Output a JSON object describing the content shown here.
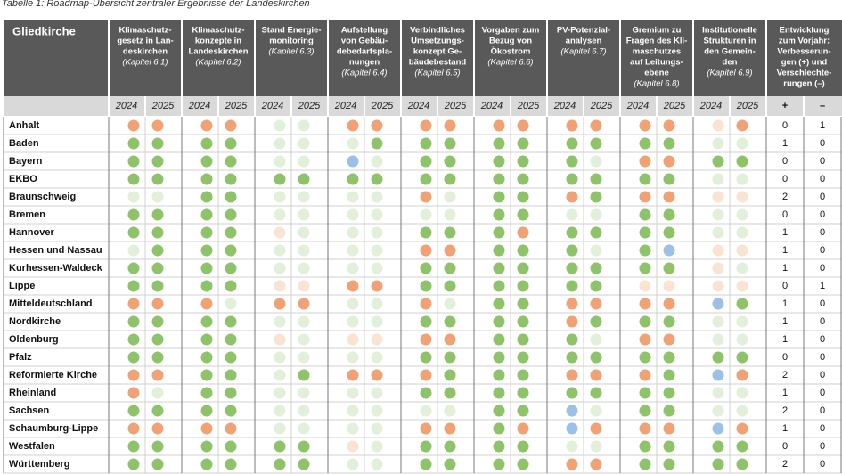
{
  "caption": "Tabelle 1: Roadmap-Übersicht zentraler Ergebnisse der Landeskirchen",
  "table": {
    "first_header": "Gliedkirche",
    "columns": [
      {
        "lines": [
          "Klimaschutz-",
          "gesetz in Lan-",
          "deskirchen"
        ],
        "chapter": "(Kapitel 6.1)"
      },
      {
        "lines": [
          "Klimaschutz-",
          "konzepte in",
          "Landeskirchen"
        ],
        "chapter": "(Kapitel 6.2)"
      },
      {
        "lines": [
          "Stand Energie-",
          "monitoring"
        ],
        "chapter": "(Kapitel 6.3)"
      },
      {
        "lines": [
          "Aufstellung",
          "von Gebäu-",
          "debedarfspla-",
          "nungen"
        ],
        "chapter": "(Kapitel 6.4)"
      },
      {
        "lines": [
          "Verbindliches",
          "Umsetzungs-",
          "konzept Ge-",
          "bäudebestand"
        ],
        "chapter": "(Kapitel 6.5)"
      },
      {
        "lines": [
          "Vorgaben zum",
          "Bezug von",
          "Ökostrom"
        ],
        "chapter": "(Kapitel 6.6)"
      },
      {
        "lines": [
          "PV-Potenzial-",
          "analysen"
        ],
        "chapter": "(Kapitel 6.7)"
      },
      {
        "lines": [
          "Gremium zu",
          "Fragen des Kli-",
          "maschutzes",
          "auf Leitungs-",
          "ebene"
        ],
        "chapter": "(Kapitel 6.8)"
      },
      {
        "lines": [
          "Institutionelle",
          "Strukturen in",
          "den Gemein-",
          "den"
        ],
        "chapter": "(Kapitel 6.9)"
      }
    ],
    "change_header": [
      "Entwicklung",
      "zum Vorjahr:",
      "Verbesserun-",
      "gen (+) und",
      "Verschlechte-",
      "rungen (–)"
    ],
    "years": [
      "2024",
      "2025"
    ],
    "change_symbols": [
      "+",
      "–"
    ],
    "rows": [
      {
        "name": "Anhalt",
        "cells": [
          "#f0a274",
          "#f0a274",
          "#f0a274",
          "#f0a274",
          "#e2efd9",
          "#e2efd9",
          "#f0a274",
          "#f0a274",
          "#f0a274",
          "#f0a274",
          "#f0a274",
          "#f0a274",
          "#f0a274",
          "#f0a274",
          "#f0a274",
          "#f0a274",
          "#fbe3d2",
          "#f0a274"
        ],
        "plus": 0,
        "minus": 1
      },
      {
        "name": "Baden",
        "cells": [
          "#8ec36a",
          "#8ec36a",
          "#8ec36a",
          "#8ec36a",
          "#e2efd9",
          "#e2efd9",
          "#e2efd9",
          "#8ec36a",
          "#8ec36a",
          "#8ec36a",
          "#8ec36a",
          "#8ec36a",
          "#8ec36a",
          "#8ec36a",
          "#8ec36a",
          "#8ec36a",
          "#e2efd9",
          "#e2efd9"
        ],
        "plus": 1,
        "minus": 0
      },
      {
        "name": "Bayern",
        "cells": [
          "#8ec36a",
          "#8ec36a",
          "#8ec36a",
          "#8ec36a",
          "#e2efd9",
          "#e2efd9",
          "#9dc0e6",
          "#e2efd9",
          "#8ec36a",
          "#8ec36a",
          "#8ec36a",
          "#8ec36a",
          "#8ec36a",
          "#e2efd9",
          "#f0a274",
          "#f0a274",
          "#8ec36a",
          "#8ec36a"
        ],
        "plus": 0,
        "minus": 0
      },
      {
        "name": "EKBO",
        "cells": [
          "#8ec36a",
          "#8ec36a",
          "#8ec36a",
          "#8ec36a",
          "#8ec36a",
          "#8ec36a",
          "#8ec36a",
          "#8ec36a",
          "#8ec36a",
          "#8ec36a",
          "#8ec36a",
          "#8ec36a",
          "#8ec36a",
          "#8ec36a",
          "#8ec36a",
          "#8ec36a",
          "#e2efd9",
          "#e2efd9"
        ],
        "plus": 0,
        "minus": 0
      },
      {
        "name": "Braunschweig",
        "cells": [
          "#e2efd9",
          "#e2efd9",
          "#8ec36a",
          "#8ec36a",
          "#e2efd9",
          "#e2efd9",
          "#e2efd9",
          "#e2efd9",
          "#f0a274",
          "#e2efd9",
          "#8ec36a",
          "#8ec36a",
          "#f0a274",
          "#8ec36a",
          "#f0a274",
          "#f0a274",
          "#fbe3d2",
          "#fbe3d2"
        ],
        "plus": 2,
        "minus": 0
      },
      {
        "name": "Bremen",
        "cells": [
          "#8ec36a",
          "#8ec36a",
          "#8ec36a",
          "#8ec36a",
          "#e2efd9",
          "#e2efd9",
          "#e2efd9",
          "#e2efd9",
          "#e2efd9",
          "#e2efd9",
          "#8ec36a",
          "#8ec36a",
          "#e2efd9",
          "#e2efd9",
          "#8ec36a",
          "#8ec36a",
          "#e2efd9",
          "#e2efd9"
        ],
        "plus": 0,
        "minus": 0
      },
      {
        "name": "Hannover",
        "cells": [
          "#8ec36a",
          "#8ec36a",
          "#8ec36a",
          "#8ec36a",
          "#fbe3d2",
          "#e2efd9",
          "#e2efd9",
          "#e2efd9",
          "#8ec36a",
          "#8ec36a",
          "#8ec36a",
          "#f0a274",
          "#8ec36a",
          "#8ec36a",
          "#8ec36a",
          "#8ec36a",
          "#e2efd9",
          "#e2efd9"
        ],
        "plus": 1,
        "minus": 0
      },
      {
        "name": "Hessen und Nassau",
        "cells": [
          "#e2efd9",
          "#8ec36a",
          "#8ec36a",
          "#8ec36a",
          "#e2efd9",
          "#e2efd9",
          "#e2efd9",
          "#e2efd9",
          "#f0a274",
          "#f0a274",
          "#8ec36a",
          "#8ec36a",
          "#8ec36a",
          "#e2efd9",
          "#8ec36a",
          "#9dc0e6",
          "#fbe3d2",
          "#fbe3d2"
        ],
        "plus": 1,
        "minus": 0
      },
      {
        "name": "Kurhessen-Waldeck",
        "cells": [
          "#8ec36a",
          "#8ec36a",
          "#8ec36a",
          "#8ec36a",
          "#e2efd9",
          "#e2efd9",
          "#e2efd9",
          "#e2efd9",
          "#8ec36a",
          "#8ec36a",
          "#8ec36a",
          "#8ec36a",
          "#8ec36a",
          "#8ec36a",
          "#8ec36a",
          "#8ec36a",
          "#fbe3d2",
          "#e2efd9"
        ],
        "plus": 1,
        "minus": 0
      },
      {
        "name": "Lippe",
        "cells": [
          "#8ec36a",
          "#8ec36a",
          "#8ec36a",
          "#8ec36a",
          "#fbe3d2",
          "#fbe3d2",
          "#f0a274",
          "#f0a274",
          "#8ec36a",
          "#8ec36a",
          "#8ec36a",
          "#8ec36a",
          "#8ec36a",
          "#8ec36a",
          "#fbe3d2",
          "#fbe3d2",
          "#fbe3d2",
          "#fbe3d2"
        ],
        "plus": 0,
        "minus": 1
      },
      {
        "name": "Mitteldeutschland",
        "cells": [
          "#f0a274",
          "#f0a274",
          "#f0a274",
          "#e2efd9",
          "#f0a274",
          "#f0a274",
          "#e2efd9",
          "#e2efd9",
          "#f0a274",
          "#e2efd9",
          "#8ec36a",
          "#8ec36a",
          "#f0a274",
          "#f0a274",
          "#f0a274",
          "#f0a274",
          "#9dc0e6",
          "#8ec36a"
        ],
        "plus": 1,
        "minus": 0
      },
      {
        "name": "Nordkirche",
        "cells": [
          "#8ec36a",
          "#8ec36a",
          "#8ec36a",
          "#8ec36a",
          "#e2efd9",
          "#e2efd9",
          "#e2efd9",
          "#e2efd9",
          "#8ec36a",
          "#8ec36a",
          "#8ec36a",
          "#8ec36a",
          "#f0a274",
          "#8ec36a",
          "#8ec36a",
          "#8ec36a",
          "#e2efd9",
          "#e2efd9"
        ],
        "plus": 1,
        "minus": 0
      },
      {
        "name": "Oldenburg",
        "cells": [
          "#8ec36a",
          "#8ec36a",
          "#8ec36a",
          "#8ec36a",
          "#fbe3d2",
          "#e2efd9",
          "#fbe3d2",
          "#fbe3d2",
          "#f0a274",
          "#f0a274",
          "#8ec36a",
          "#8ec36a",
          "#8ec36a",
          "#e2efd9",
          "#f0a274",
          "#f0a274",
          "#e2efd9",
          "#e2efd9"
        ],
        "plus": 1,
        "minus": 0
      },
      {
        "name": "Pfalz",
        "cells": [
          "#8ec36a",
          "#8ec36a",
          "#8ec36a",
          "#8ec36a",
          "#e2efd9",
          "#e2efd9",
          "#e2efd9",
          "#e2efd9",
          "#8ec36a",
          "#8ec36a",
          "#8ec36a",
          "#8ec36a",
          "#8ec36a",
          "#8ec36a",
          "#8ec36a",
          "#8ec36a",
          "#8ec36a",
          "#8ec36a"
        ],
        "plus": 0,
        "minus": 0
      },
      {
        "name": "Reformierte Kirche",
        "cells": [
          "#f0a274",
          "#f0a274",
          "#8ec36a",
          "#8ec36a",
          "#e2efd9",
          "#8ec36a",
          "#f0a274",
          "#f0a274",
          "#f0a274",
          "#8ec36a",
          "#8ec36a",
          "#8ec36a",
          "#f0a274",
          "#f0a274",
          "#f0a274",
          "#8ec36a",
          "#9dc0e6",
          "#f0a274"
        ],
        "plus": 2,
        "minus": 0
      },
      {
        "name": "Rheinland",
        "cells": [
          "#f0a274",
          "#e2efd9",
          "#8ec36a",
          "#8ec36a",
          "#e2efd9",
          "#e2efd9",
          "#e2efd9",
          "#e2efd9",
          "#8ec36a",
          "#8ec36a",
          "#8ec36a",
          "#8ec36a",
          "#8ec36a",
          "#8ec36a",
          "#8ec36a",
          "#8ec36a",
          "#e2efd9",
          "#e2efd9"
        ],
        "plus": 1,
        "minus": 0
      },
      {
        "name": "Sachsen",
        "cells": [
          "#8ec36a",
          "#8ec36a",
          "#8ec36a",
          "#8ec36a",
          "#e2efd9",
          "#e2efd9",
          "#e2efd9",
          "#e2efd9",
          "#e2efd9",
          "#e2efd9",
          "#8ec36a",
          "#8ec36a",
          "#9dc0e6",
          "#e2efd9",
          "#8ec36a",
          "#8ec36a",
          "#e2efd9",
          "#e2efd9"
        ],
        "plus": 2,
        "minus": 0
      },
      {
        "name": "Schaumburg-Lippe",
        "cells": [
          "#f0a274",
          "#f0a274",
          "#f0a274",
          "#f0a274",
          "#e2efd9",
          "#e2efd9",
          "#e2efd9",
          "#e2efd9",
          "#f0a274",
          "#f0a274",
          "#8ec36a",
          "#f0a274",
          "#9dc0e6",
          "#f0a274",
          "#f0a274",
          "#f0a274",
          "#9dc0e6",
          "#f0a274"
        ],
        "plus": 1,
        "minus": 0
      },
      {
        "name": "Westfalen",
        "cells": [
          "#8ec36a",
          "#8ec36a",
          "#8ec36a",
          "#8ec36a",
          "#8ec36a",
          "#8ec36a",
          "#fbe3d2",
          "#e2efd9",
          "#8ec36a",
          "#8ec36a",
          "#8ec36a",
          "#8ec36a",
          "#e2efd9",
          "#e2efd9",
          "#8ec36a",
          "#8ec36a",
          "#8ec36a",
          "#8ec36a"
        ],
        "plus": 0,
        "minus": 0
      },
      {
        "name": "Württemberg",
        "cells": [
          "#8ec36a",
          "#8ec36a",
          "#8ec36a",
          "#8ec36a",
          "#8ec36a",
          "#8ec36a",
          "#e2efd9",
          "#e2efd9",
          "#8ec36a",
          "#8ec36a",
          "#8ec36a",
          "#8ec36a",
          "#f0a274",
          "#f0a274",
          "#8ec36a",
          "#8ec36a",
          "#8ec36a",
          "#8ec36a"
        ],
        "plus": 2,
        "minus": 0
      }
    ]
  }
}
